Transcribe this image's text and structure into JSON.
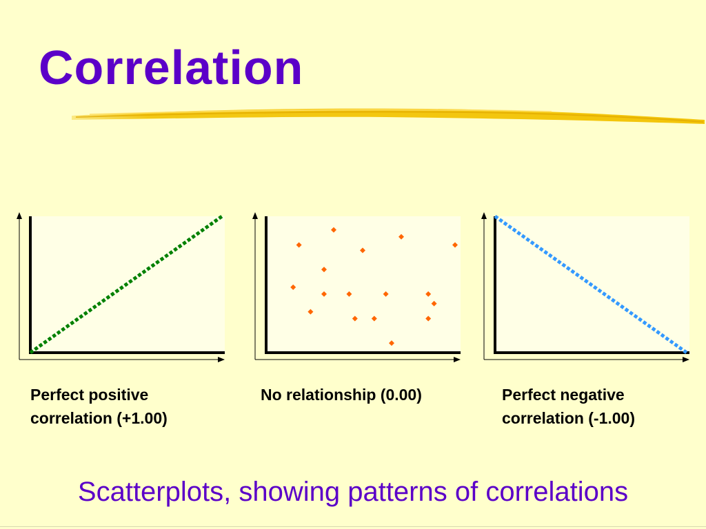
{
  "slide": {
    "title": "Correlation",
    "subtitle": "Scatterplots, showing patterns of correlations",
    "colors": {
      "background": "#FFFFCC",
      "title": "#5B00C8",
      "underline": "#F2C200"
    }
  },
  "chart_data": [
    {
      "type": "line",
      "caption_lines": [
        "Perfect positive",
        "correlation (+1.00)"
      ],
      "style": "dotted",
      "color": "#008000",
      "x": [
        0,
        10
      ],
      "y": [
        0,
        10
      ],
      "xlim": [
        0,
        10
      ],
      "ylim": [
        0,
        10
      ],
      "grid": false
    },
    {
      "type": "scatter",
      "caption_lines": [
        "No relationship (0.00)"
      ],
      "color": "#FF6600",
      "points": [
        [
          3.5,
          9.0
        ],
        [
          7.0,
          8.5
        ],
        [
          1.7,
          7.9
        ],
        [
          5.0,
          7.5
        ],
        [
          10.0,
          7.9
        ],
        [
          3.0,
          6.1
        ],
        [
          1.4,
          4.8
        ],
        [
          3.0,
          4.3
        ],
        [
          4.3,
          4.3
        ],
        [
          6.2,
          4.3
        ],
        [
          8.4,
          4.3
        ],
        [
          8.7,
          3.6
        ],
        [
          2.3,
          3.0
        ],
        [
          4.6,
          2.5
        ],
        [
          5.6,
          2.5
        ],
        [
          8.4,
          2.5
        ],
        [
          6.5,
          0.7
        ]
      ],
      "xlim": [
        0,
        10
      ],
      "ylim": [
        0,
        10
      ],
      "grid": false
    },
    {
      "type": "line",
      "caption_lines": [
        "Perfect negative",
        "correlation (-1.00)"
      ],
      "style": "dotted",
      "color": "#3399FF",
      "x": [
        0,
        10
      ],
      "y": [
        10,
        0
      ],
      "xlim": [
        0,
        10
      ],
      "ylim": [
        0,
        10
      ],
      "grid": false
    }
  ]
}
